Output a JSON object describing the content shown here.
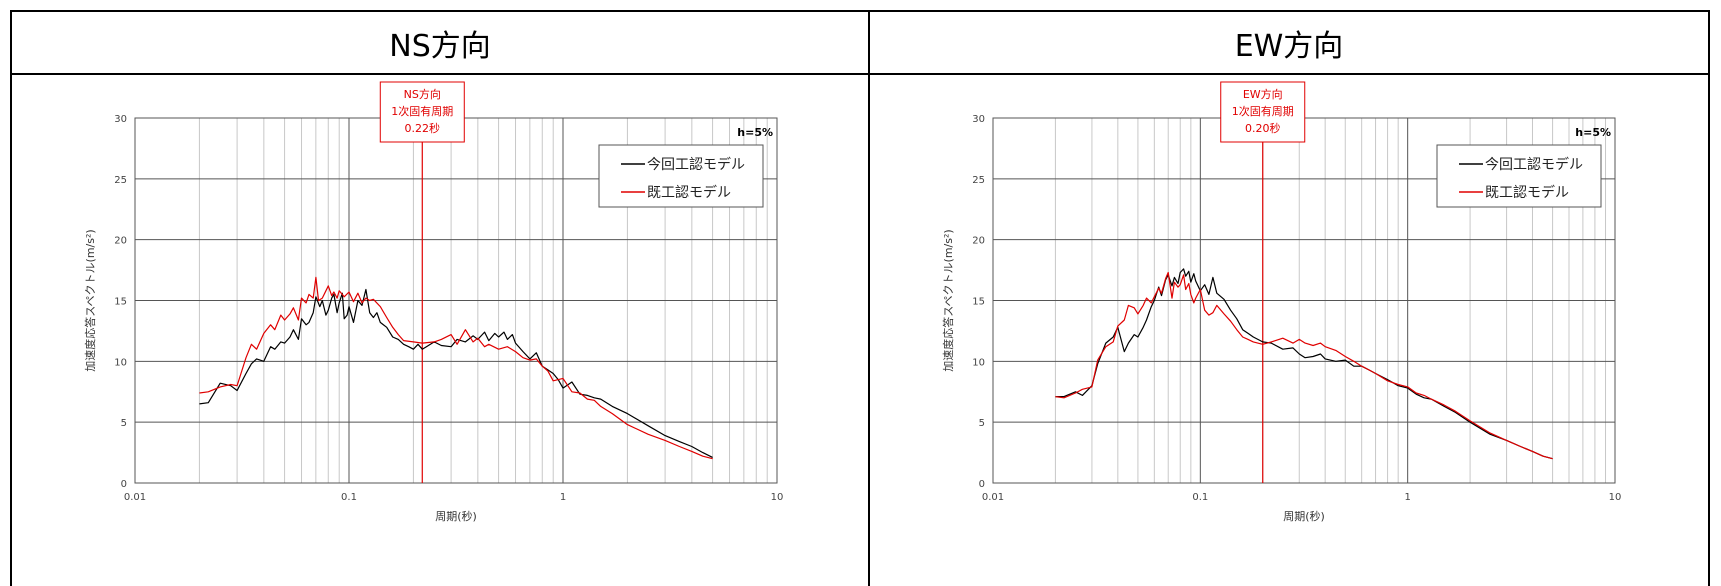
{
  "chart_data": [
    {
      "type": "line",
      "title": "NS方向",
      "xlabel": "周期(秒)",
      "ylabel": "加速度応答スペクトル(m/s²)",
      "xscale": "log",
      "xlim": [
        0.01,
        10
      ],
      "ylim": [
        0,
        30
      ],
      "x_ticks": [
        "0.01",
        "0.1",
        "1",
        "10"
      ],
      "y_ticks": [
        "0",
        "5",
        "10",
        "15",
        "20",
        "25",
        "30"
      ],
      "grid": "on",
      "damping": "h=5%",
      "legend_position": "top-right",
      "natural_period": {
        "value": 0.22,
        "label_lines": [
          "NS方向",
          "1次固有周期",
          "0.22秒"
        ],
        "color": "#e00000"
      },
      "series": [
        {
          "name": "今回工認モデル",
          "color": "#000000",
          "x": [
            0.02,
            0.022,
            0.025,
            0.028,
            0.03,
            0.033,
            0.035,
            0.037,
            0.04,
            0.043,
            0.045,
            0.048,
            0.05,
            0.053,
            0.055,
            0.058,
            0.06,
            0.063,
            0.065,
            0.068,
            0.07,
            0.073,
            0.075,
            0.078,
            0.08,
            0.083,
            0.085,
            0.088,
            0.09,
            0.093,
            0.095,
            0.098,
            0.1,
            0.105,
            0.11,
            0.115,
            0.12,
            0.125,
            0.13,
            0.135,
            0.14,
            0.15,
            0.16,
            0.17,
            0.18,
            0.19,
            0.2,
            0.21,
            0.22,
            0.23,
            0.25,
            0.27,
            0.3,
            0.32,
            0.35,
            0.38,
            0.4,
            0.43,
            0.45,
            0.48,
            0.5,
            0.53,
            0.55,
            0.58,
            0.6,
            0.65,
            0.7,
            0.75,
            0.8,
            0.85,
            0.9,
            0.95,
            1.0,
            1.1,
            1.2,
            1.3,
            1.4,
            1.5,
            1.7,
            2.0,
            2.5,
            3.0,
            3.5,
            4.0,
            4.5,
            5.0
          ],
          "y": [
            6.5,
            6.6,
            8.2,
            8.0,
            7.6,
            9.0,
            9.8,
            10.2,
            10.0,
            11.2,
            11.0,
            11.6,
            11.5,
            12.0,
            12.6,
            11.8,
            13.5,
            13.0,
            13.2,
            14.0,
            15.3,
            14.5,
            15.0,
            13.8,
            14.2,
            15.2,
            15.5,
            14.0,
            14.8,
            15.6,
            13.5,
            13.8,
            14.5,
            13.2,
            15.0,
            14.6,
            15.9,
            14.0,
            13.6,
            14.0,
            13.2,
            12.8,
            12.0,
            11.8,
            11.4,
            11.2,
            11.0,
            11.4,
            11.0,
            11.2,
            11.6,
            11.3,
            11.2,
            11.8,
            11.6,
            12.1,
            11.8,
            12.4,
            11.7,
            12.3,
            12.0,
            12.4,
            11.8,
            12.2,
            11.5,
            10.8,
            10.2,
            10.7,
            9.6,
            9.3,
            9.0,
            8.5,
            7.8,
            8.3,
            7.3,
            7.2,
            7.0,
            6.9,
            6.3,
            5.7,
            4.7,
            3.9,
            3.4,
            3.0,
            2.5,
            2.1
          ]
        },
        {
          "name": "既工認モデル",
          "color": "#e00000",
          "x": [
            0.02,
            0.022,
            0.025,
            0.028,
            0.03,
            0.033,
            0.035,
            0.037,
            0.04,
            0.043,
            0.045,
            0.048,
            0.05,
            0.053,
            0.055,
            0.058,
            0.06,
            0.063,
            0.065,
            0.068,
            0.07,
            0.072,
            0.075,
            0.078,
            0.08,
            0.083,
            0.085,
            0.088,
            0.09,
            0.093,
            0.095,
            0.1,
            0.105,
            0.11,
            0.115,
            0.12,
            0.125,
            0.13,
            0.14,
            0.15,
            0.16,
            0.17,
            0.18,
            0.2,
            0.22,
            0.25,
            0.27,
            0.3,
            0.32,
            0.35,
            0.38,
            0.4,
            0.43,
            0.45,
            0.5,
            0.55,
            0.6,
            0.65,
            0.7,
            0.75,
            0.8,
            0.85,
            0.9,
            1.0,
            1.1,
            1.2,
            1.3,
            1.4,
            1.5,
            1.7,
            2.0,
            2.5,
            3.0,
            3.5,
            4.0,
            4.5,
            5.0
          ],
          "y": [
            7.4,
            7.5,
            7.9,
            8.1,
            8.0,
            10.3,
            11.4,
            11.0,
            12.3,
            13.0,
            12.6,
            13.8,
            13.4,
            13.9,
            14.4,
            13.4,
            15.2,
            14.8,
            15.5,
            15.2,
            16.9,
            15.0,
            15.2,
            15.8,
            16.2,
            15.4,
            15.7,
            15.2,
            15.8,
            15.5,
            15.3,
            15.7,
            14.9,
            15.6,
            14.8,
            15.2,
            15.0,
            15.1,
            14.5,
            13.6,
            12.8,
            12.2,
            11.7,
            11.6,
            11.5,
            11.6,
            11.8,
            12.2,
            11.4,
            12.6,
            11.6,
            11.9,
            11.2,
            11.4,
            11.0,
            11.2,
            10.8,
            10.3,
            10.1,
            10.2,
            9.6,
            9.2,
            8.4,
            8.6,
            7.5,
            7.4,
            6.9,
            6.8,
            6.3,
            5.7,
            4.8,
            4.0,
            3.5,
            3.0,
            2.6,
            2.2,
            2.0
          ]
        }
      ]
    },
    {
      "type": "line",
      "title": "EW方向",
      "xlabel": "周期(秒)",
      "ylabel": "加速度応答スペクトル(m/s²)",
      "xscale": "log",
      "xlim": [
        0.01,
        10
      ],
      "ylim": [
        0,
        30
      ],
      "x_ticks": [
        "0.01",
        "0.1",
        "1",
        "10"
      ],
      "y_ticks": [
        "0",
        "5",
        "10",
        "15",
        "20",
        "25",
        "30"
      ],
      "grid": "on",
      "damping": "h=5%",
      "legend_position": "top-right",
      "natural_period": {
        "value": 0.2,
        "label_lines": [
          "EW方向",
          "1次固有周期",
          "0.20秒"
        ],
        "color": "#e00000"
      },
      "series": [
        {
          "name": "今回工認モデル",
          "color": "#000000",
          "x": [
            0.02,
            0.022,
            0.025,
            0.027,
            0.03,
            0.032,
            0.035,
            0.038,
            0.04,
            0.043,
            0.045,
            0.048,
            0.05,
            0.053,
            0.055,
            0.058,
            0.06,
            0.063,
            0.065,
            0.068,
            0.07,
            0.073,
            0.075,
            0.078,
            0.08,
            0.083,
            0.085,
            0.088,
            0.09,
            0.093,
            0.095,
            0.1,
            0.105,
            0.11,
            0.115,
            0.12,
            0.13,
            0.14,
            0.15,
            0.16,
            0.17,
            0.18,
            0.2,
            0.22,
            0.25,
            0.28,
            0.3,
            0.32,
            0.35,
            0.38,
            0.4,
            0.45,
            0.5,
            0.55,
            0.6,
            0.65,
            0.7,
            0.8,
            0.9,
            1.0,
            1.1,
            1.2,
            1.3,
            1.5,
            1.7,
            2.0,
            2.5,
            3.0,
            3.5,
            4.0,
            4.5,
            5.0
          ],
          "y": [
            7.1,
            7.1,
            7.5,
            7.2,
            8.0,
            9.8,
            11.5,
            12.0,
            12.8,
            10.8,
            11.5,
            12.2,
            12.0,
            12.8,
            13.4,
            14.5,
            15.0,
            16.1,
            15.4,
            16.7,
            17.1,
            16.2,
            16.9,
            16.4,
            17.3,
            17.6,
            17.0,
            17.4,
            16.5,
            17.2,
            16.6,
            15.8,
            16.3,
            15.5,
            16.9,
            15.6,
            15.1,
            14.2,
            13.5,
            12.6,
            12.3,
            12.0,
            11.6,
            11.5,
            11.0,
            11.1,
            10.6,
            10.3,
            10.4,
            10.6,
            10.2,
            10.0,
            10.1,
            9.6,
            9.6,
            9.3,
            9.0,
            8.5,
            8.0,
            7.8,
            7.3,
            7.0,
            6.9,
            6.3,
            5.8,
            5.0,
            4.0,
            3.5,
            3.0,
            2.6,
            2.2,
            2.0
          ]
        },
        {
          "name": "既工認モデル",
          "color": "#e00000",
          "x": [
            0.02,
            0.022,
            0.025,
            0.027,
            0.03,
            0.032,
            0.035,
            0.038,
            0.04,
            0.043,
            0.045,
            0.048,
            0.05,
            0.053,
            0.055,
            0.058,
            0.06,
            0.063,
            0.065,
            0.068,
            0.07,
            0.073,
            0.075,
            0.078,
            0.08,
            0.083,
            0.085,
            0.088,
            0.09,
            0.093,
            0.095,
            0.1,
            0.105,
            0.11,
            0.115,
            0.12,
            0.13,
            0.14,
            0.15,
            0.16,
            0.17,
            0.18,
            0.2,
            0.22,
            0.25,
            0.28,
            0.3,
            0.32,
            0.35,
            0.38,
            0.4,
            0.45,
            0.5,
            0.55,
            0.6,
            0.65,
            0.7,
            0.8,
            0.9,
            1.0,
            1.1,
            1.2,
            1.3,
            1.5,
            1.7,
            2.0,
            2.5,
            3.0,
            3.5,
            4.0,
            4.5,
            5.0
          ],
          "y": [
            7.1,
            7.0,
            7.4,
            7.7,
            7.9,
            10.1,
            11.2,
            11.6,
            12.9,
            13.4,
            14.6,
            14.4,
            13.9,
            14.6,
            15.2,
            14.8,
            15.3,
            16.0,
            15.6,
            16.8,
            17.3,
            15.2,
            16.5,
            16.1,
            16.3,
            17.1,
            15.9,
            16.4,
            15.5,
            14.8,
            15.2,
            15.9,
            14.2,
            13.8,
            14.0,
            14.6,
            13.9,
            13.3,
            12.6,
            12.0,
            11.8,
            11.6,
            11.4,
            11.6,
            11.9,
            11.5,
            11.8,
            11.5,
            11.3,
            11.5,
            11.2,
            10.9,
            10.4,
            10.0,
            9.6,
            9.3,
            9.0,
            8.4,
            8.1,
            7.9,
            7.4,
            7.2,
            6.9,
            6.4,
            5.9,
            5.1,
            4.1,
            3.5,
            3.0,
            2.6,
            2.2,
            2.0
          ]
        }
      ]
    }
  ]
}
